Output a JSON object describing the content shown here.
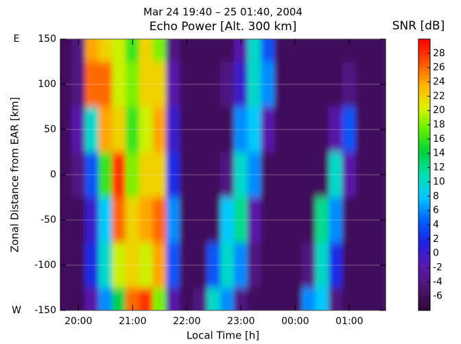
{
  "chart_data": {
    "type": "heatmap",
    "subtitle": "Mar 24 19:40 – 25 01:40, 2004",
    "title": "Echo Power [Alt. 300 km]",
    "xlabel": "Local Time [h]",
    "ylabel": "Zonal Distance from EAR [km]",
    "y_end_labels": [
      "E",
      "W"
    ],
    "colorbar_label": "SNR [dB]",
    "x": [
      19.75,
      20.0,
      20.25,
      20.5,
      20.75,
      21.0,
      21.25,
      21.5,
      21.75,
      22.0,
      22.25,
      22.5,
      22.75,
      23.0,
      23.25,
      23.5,
      23.75,
      24.0,
      24.25,
      24.5,
      24.75,
      25.0,
      25.25,
      25.5
    ],
    "y": [
      150,
      100,
      50,
      0,
      -50,
      -100,
      -150
    ],
    "z": [
      [
        -6,
        -4,
        24,
        22,
        20,
        16,
        22,
        18,
        -4,
        -6,
        -6,
        -6,
        -6,
        -2,
        10,
        4,
        -6,
        -6,
        -6,
        -6,
        -6,
        -6,
        -6,
        -6
      ],
      [
        -6,
        -4,
        26,
        26,
        20,
        18,
        22,
        22,
        -2,
        -6,
        -6,
        -6,
        -4,
        0,
        10,
        6,
        -6,
        -6,
        -6,
        -6,
        -6,
        -4,
        -6,
        -6
      ],
      [
        -6,
        -2,
        10,
        24,
        22,
        16,
        20,
        24,
        0,
        -6,
        -6,
        -6,
        -6,
        6,
        8,
        -2,
        -6,
        -6,
        -6,
        -6,
        -2,
        4,
        -6,
        -6
      ],
      [
        -6,
        -4,
        4,
        16,
        28,
        18,
        22,
        22,
        2,
        -6,
        -6,
        -6,
        -4,
        10,
        6,
        -6,
        -6,
        -6,
        -6,
        -6,
        10,
        -2,
        -6,
        -6
      ],
      [
        -6,
        -6,
        0,
        8,
        26,
        22,
        24,
        26,
        6,
        -6,
        -6,
        -6,
        8,
        12,
        -2,
        -6,
        -6,
        -6,
        -6,
        12,
        6,
        -6,
        -6,
        -6
      ],
      [
        -6,
        -6,
        2,
        10,
        20,
        22,
        20,
        24,
        4,
        -6,
        -6,
        4,
        10,
        6,
        -4,
        -6,
        -6,
        -6,
        -4,
        10,
        2,
        -6,
        -6,
        -6
      ],
      [
        -6,
        -6,
        -2,
        6,
        14,
        26,
        28,
        18,
        -2,
        -6,
        -4,
        10,
        6,
        -4,
        -6,
        -6,
        -6,
        -6,
        6,
        8,
        -4,
        -6,
        -6,
        -6
      ]
    ],
    "xlim": [
      19.667,
      25.667
    ],
    "xticks": [
      {
        "value": 20,
        "label": "20:00"
      },
      {
        "value": 21,
        "label": "21:00"
      },
      {
        "value": 22,
        "label": "22:00"
      },
      {
        "value": 23,
        "label": "23:00"
      },
      {
        "value": 24,
        "label": "00:00"
      },
      {
        "value": 25,
        "label": "01:00"
      }
    ],
    "ylim": [
      -150,
      150
    ],
    "yticks": [
      -150,
      -100,
      -50,
      0,
      50,
      100,
      150
    ],
    "zlim": [
      -8,
      30
    ],
    "zticks": [
      -6,
      -4,
      -2,
      0,
      2,
      4,
      6,
      8,
      10,
      12,
      14,
      16,
      18,
      20,
      22,
      24,
      26,
      28
    ],
    "colorscale": [
      "#2e0838",
      "#4b1570",
      "#5a1ab0",
      "#2020e0",
      "#0060ff",
      "#00c8ff",
      "#00e0b0",
      "#00d040",
      "#60f000",
      "#e0f000",
      "#ffb000",
      "#ff5000",
      "#ff0000"
    ],
    "grid": true
  }
}
